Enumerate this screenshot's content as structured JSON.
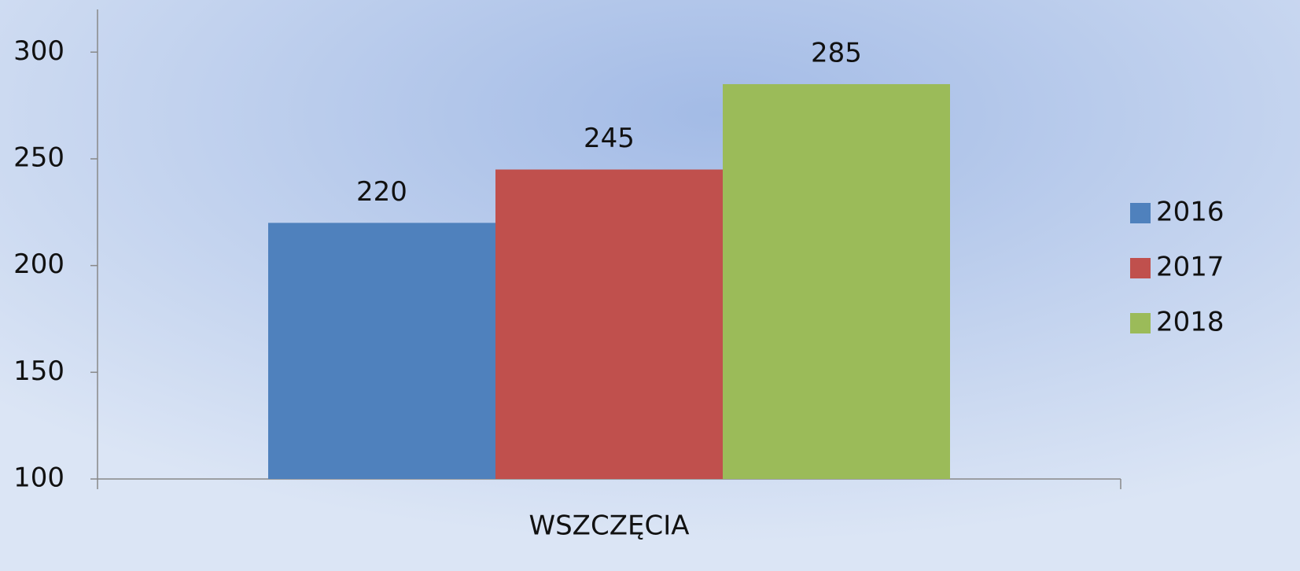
{
  "chart_data": {
    "type": "bar",
    "categories": [
      "WSZCZĘCIA"
    ],
    "series": [
      {
        "name": "2016",
        "color": "#4f81bd",
        "values": [
          220
        ]
      },
      {
        "name": "2017",
        "color": "#c0504d",
        "values": [
          245
        ]
      },
      {
        "name": "2018",
        "color": "#9bbb59",
        "values": [
          285
        ]
      }
    ],
    "ylim": [
      100,
      320
    ],
    "yticks": [
      100,
      150,
      200,
      250,
      300
    ],
    "data_labels": true,
    "legend": "right"
  }
}
